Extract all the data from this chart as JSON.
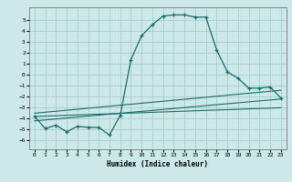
{
  "xlabel": "Humidex (Indice chaleur)",
  "bg_color": "#cce8e8",
  "grid_color": "#aacccc",
  "line_color": "#1a6b6b",
  "xlim": [
    -0.5,
    23.5
  ],
  "ylim": [
    -6.8,
    6.2
  ],
  "xticks": [
    0,
    1,
    2,
    3,
    4,
    5,
    6,
    7,
    8,
    9,
    10,
    11,
    12,
    13,
    14,
    15,
    16,
    17,
    18,
    19,
    20,
    21,
    22,
    23
  ],
  "yticks": [
    -6,
    -5,
    -4,
    -3,
    -2,
    -1,
    0,
    1,
    2,
    3,
    4,
    5
  ],
  "main_curve_x": [
    0,
    1,
    2,
    3,
    4,
    5,
    6,
    7,
    8,
    9,
    10,
    11,
    12,
    13,
    14,
    15,
    16,
    17,
    18,
    19,
    20,
    21,
    22,
    23
  ],
  "main_curve_y": [
    -3.8,
    -4.9,
    -4.6,
    -5.2,
    -4.7,
    -4.8,
    -4.8,
    -5.5,
    -3.7,
    1.4,
    3.6,
    4.6,
    5.4,
    5.5,
    5.5,
    5.3,
    5.3,
    2.3,
    0.3,
    -0.3,
    -1.2,
    -1.2,
    -1.1,
    -2.1
  ],
  "line1_x": [
    0,
    23
  ],
  "line1_y": [
    -3.5,
    -1.4
  ],
  "line2_x": [
    0,
    23
  ],
  "line2_y": [
    -4.2,
    -2.2
  ],
  "line3_x": [
    0,
    23
  ],
  "line3_y": [
    -3.8,
    -3.0
  ]
}
